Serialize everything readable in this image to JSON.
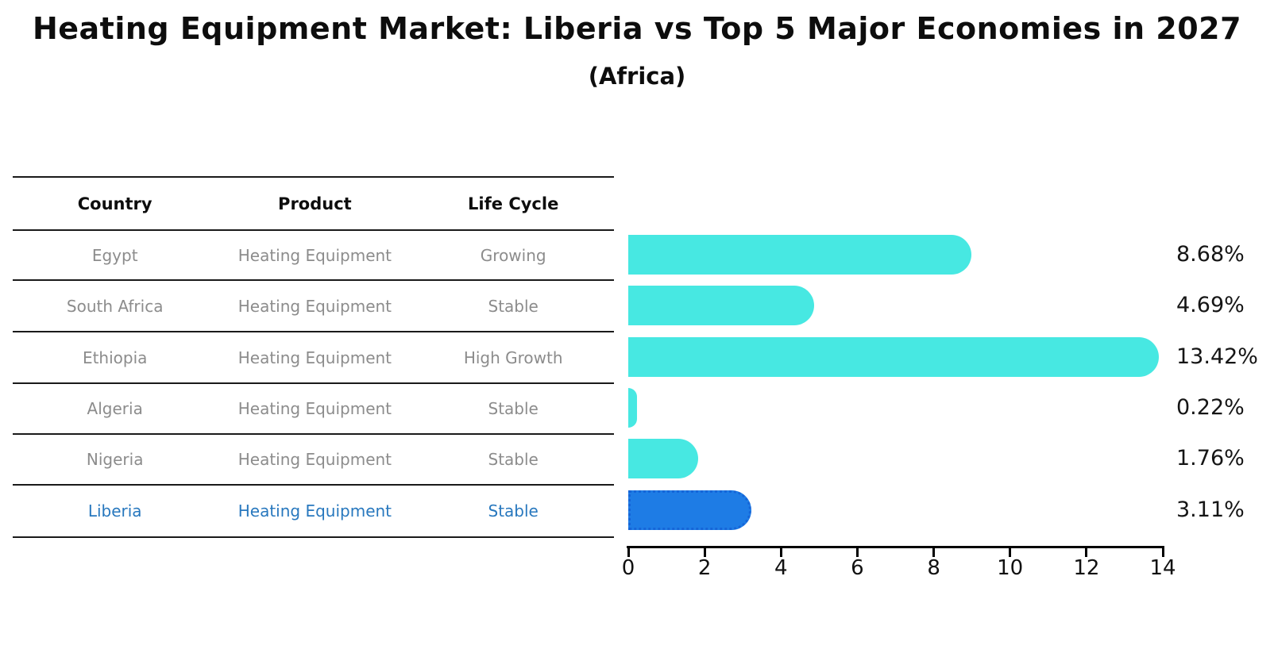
{
  "header": {
    "title": "Heating Equipment Market: Liberia vs Top 5 Major Economies in 2027",
    "subtitle": "(Africa)"
  },
  "table": {
    "columns": [
      "Country",
      "Product",
      "Life Cycle"
    ],
    "rows": [
      {
        "country": "Egypt",
        "product": "Heating Equipment",
        "life_cycle": "Growing",
        "highlight": false
      },
      {
        "country": "South Africa",
        "product": "Heating Equipment",
        "life_cycle": "Stable",
        "highlight": false
      },
      {
        "country": "Ethiopia",
        "product": "Heating Equipment",
        "life_cycle": "High Growth",
        "highlight": false
      },
      {
        "country": "Algeria",
        "product": "Heating Equipment",
        "life_cycle": "Stable",
        "highlight": false
      },
      {
        "country": "Nigeria",
        "product": "Heating Equipment",
        "life_cycle": "Stable",
        "highlight": false
      },
      {
        "country": "Liberia",
        "product": "Heating Equipment",
        "life_cycle": "Stable",
        "highlight": true
      }
    ]
  },
  "chart_data": {
    "type": "bar",
    "orientation": "horizontal",
    "title": "Heating Equipment Market: Liberia vs Top 5 Major Economies in 2027",
    "subtitle": "(Africa)",
    "categories": [
      "Egypt",
      "South Africa",
      "Ethiopia",
      "Algeria",
      "Nigeria",
      "Liberia"
    ],
    "values": [
      8.68,
      4.69,
      13.42,
      0.22,
      1.76,
      3.11
    ],
    "value_labels": [
      "8.68%",
      "4.69%",
      "13.42%",
      "0.22%",
      "1.76%",
      "3.11%"
    ],
    "xlabel": "",
    "ylabel": "",
    "xlim": [
      0,
      14
    ],
    "x_ticks": [
      0,
      2,
      4,
      6,
      8,
      10,
      12,
      14
    ],
    "grid": false,
    "legend": "none",
    "highlight_index": 5
  },
  "colors": {
    "bar": "#47e8e2",
    "highlight_bar": "#1e7ce5",
    "highlight_border": "#1565d8",
    "highlight_text": "#2878be",
    "row_text": "#8c8c8c",
    "axis": "#000000"
  }
}
